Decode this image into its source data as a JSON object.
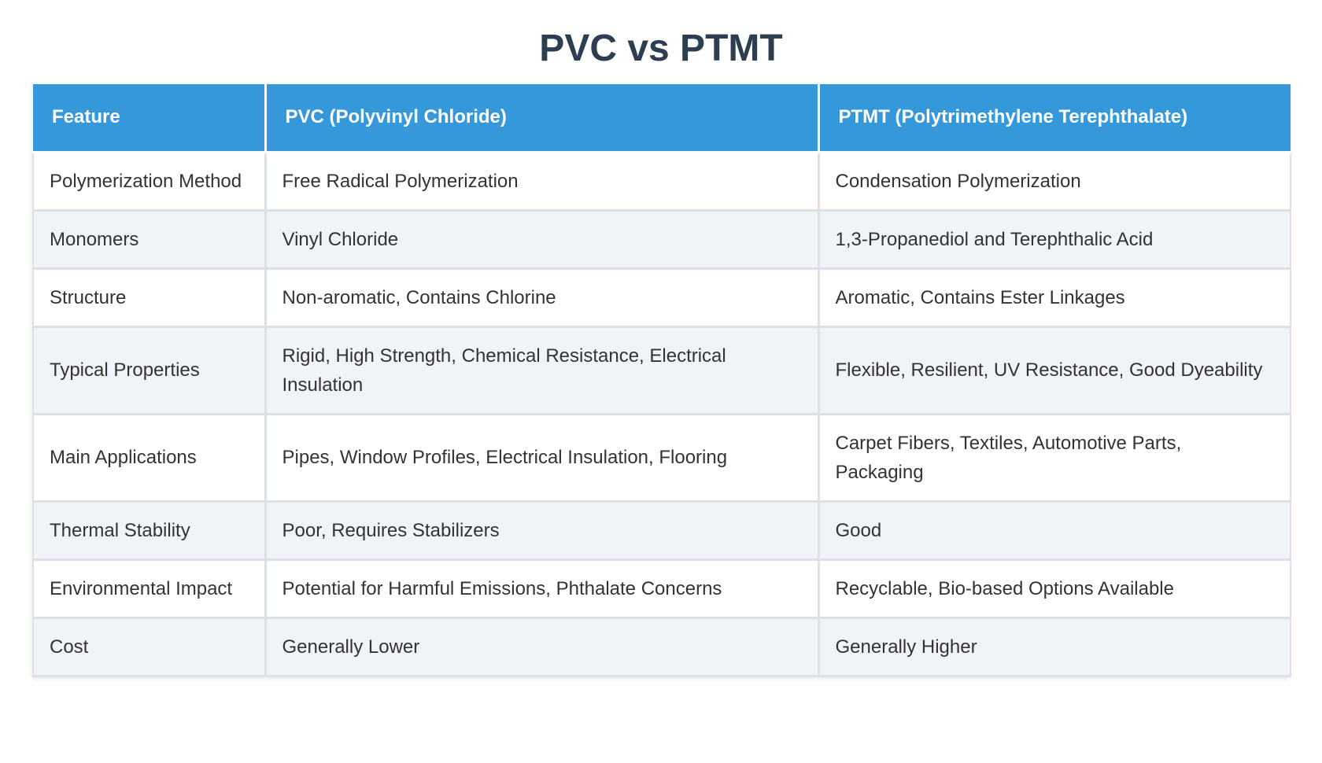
{
  "title": "PVC vs PTMT",
  "table": {
    "headers": [
      "Feature",
      "PVC (Polyvinyl Chloride)",
      "PTMT (Polytrimethylene Terephthalate)"
    ],
    "rows": [
      [
        "Polymerization Method",
        "Free Radical Polymerization",
        "Condensation Polymerization"
      ],
      [
        "Monomers",
        "Vinyl Chloride",
        "1,3-Propanediol and Terephthalic Acid"
      ],
      [
        "Structure",
        "Non-aromatic, Contains Chlorine",
        "Aromatic, Contains Ester Linkages"
      ],
      [
        "Typical Properties",
        "Rigid, High Strength, Chemical Resistance, Electrical Insulation",
        "Flexible, Resilient, UV Resistance, Good Dyeability"
      ],
      [
        "Main Applications",
        "Pipes, Window Profiles, Electrical Insulation, Flooring",
        "Carpet Fibers, Textiles, Automotive Parts, Packaging"
      ],
      [
        "Thermal Stability",
        "Poor, Requires Stabilizers",
        "Good"
      ],
      [
        "Environmental Impact",
        "Potential for Harmful Emissions, Phthalate Concerns",
        "Recyclable, Bio-based Options Available"
      ],
      [
        "Cost",
        "Generally Lower",
        "Generally Higher"
      ]
    ]
  },
  "colors": {
    "header_bg": "#3498db",
    "title": "#2c3e50",
    "row_alt": "#f0f4f9"
  }
}
